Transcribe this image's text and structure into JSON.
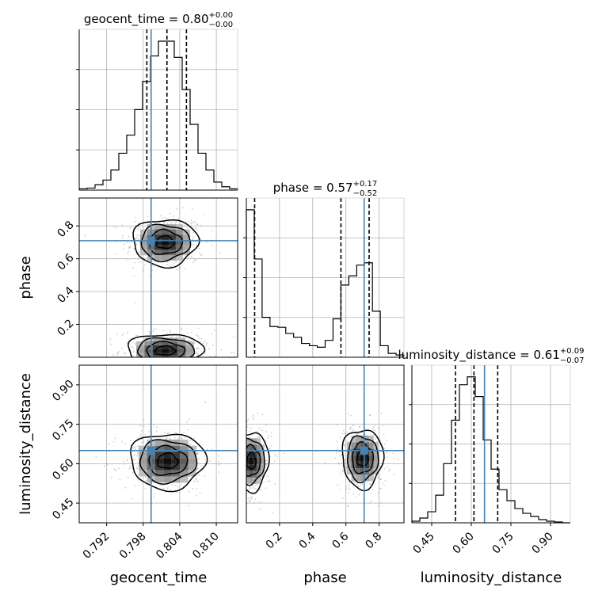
{
  "colors": {
    "truth": "#4682b4",
    "hist": "#000000",
    "grid": "#b0b0b0",
    "contour": "#000000",
    "scatter": "#9e9e9e"
  },
  "chart_data": {
    "type": "corner",
    "parameters": [
      "geocent_time",
      "phase",
      "luminosity_distance"
    ],
    "xlabels": [
      "geocent_time",
      "phase",
      "luminosity_distance"
    ],
    "ylabels": [
      "phase",
      "luminosity_distance"
    ],
    "truths": {
      "geocent_time": 0.7993,
      "phase": 0.71,
      "luminosity_distance": 0.65
    },
    "panels": [
      {
        "id": "hist-geocent_time",
        "type": "histogram",
        "param": "geocent_time",
        "title_name": "geocent_time",
        "title_value": "0.80",
        "title_plus": "+0.00",
        "title_minus": "−0.00",
        "xlim": [
          0.7875,
          0.8135
        ],
        "quantiles": [
          0.7986,
          0.8019,
          0.8051
        ],
        "bin_edges": [
          0.7875,
          0.7888,
          0.7901,
          0.7914,
          0.7927,
          0.794,
          0.7953,
          0.7966,
          0.7979,
          0.7992,
          0.8005,
          0.8018,
          0.8031,
          0.8044,
          0.8057,
          0.807,
          0.8083,
          0.8096,
          0.8109,
          0.8122,
          0.8135
        ],
        "counts": [
          2,
          3,
          8,
          15,
          30,
          55,
          82,
          120,
          162,
          200,
          222,
          222,
          198,
          150,
          98,
          55,
          30,
          12,
          5,
          2
        ]
      },
      {
        "id": "hist-phase",
        "type": "histogram",
        "param": "phase",
        "title_name": "phase",
        "title_value": "0.57",
        "title_plus": "+0.17",
        "title_minus": "−0.52",
        "xlim": [
          0.0,
          0.95
        ],
        "quantiles": [
          0.05,
          0.57,
          0.74
        ],
        "bin_edges": [
          0.0,
          0.0475,
          0.095,
          0.1425,
          0.19,
          0.2375,
          0.285,
          0.3325,
          0.38,
          0.4275,
          0.475,
          0.5225,
          0.57,
          0.6175,
          0.665,
          0.7125,
          0.76,
          0.8075,
          0.855,
          0.9025,
          0.95
        ],
        "counts": [
          192,
          128,
          52,
          40,
          39,
          31,
          26,
          18,
          15,
          13,
          22,
          50,
          94,
          106,
          120,
          123,
          60,
          15,
          5,
          3
        ]
      },
      {
        "id": "hist-luminosity_distance",
        "type": "histogram",
        "param": "luminosity_distance",
        "title_name": "luminosity_distance",
        "title_value": "0.61",
        "title_plus": "+0.09",
        "title_minus": "−0.07",
        "xlim": [
          0.375,
          0.975
        ],
        "quantiles": [
          0.54,
          0.61,
          0.7
        ],
        "bin_edges": [
          0.375,
          0.405,
          0.435,
          0.465,
          0.495,
          0.525,
          0.555,
          0.585,
          0.615,
          0.645,
          0.675,
          0.705,
          0.735,
          0.765,
          0.795,
          0.825,
          0.855,
          0.885,
          0.915,
          0.945,
          0.975
        ],
        "counts": [
          2,
          6,
          14,
          35,
          75,
          130,
          175,
          185,
          160,
          105,
          68,
          42,
          28,
          18,
          12,
          8,
          4,
          2,
          1,
          0
        ]
      },
      {
        "id": "pair-phase-vs-geocent_time",
        "type": "density_contour",
        "x_param": "geocent_time",
        "y_param": "phase",
        "xlim": [
          0.7875,
          0.8135
        ],
        "ylim": [
          0.0,
          0.97
        ],
        "modes": [
          {
            "x": 0.8016,
            "y": 0.7,
            "sx": 0.0026,
            "sy": 0.07
          },
          {
            "x": 0.8016,
            "y": 0.04,
            "sx": 0.003,
            "sy": 0.05
          }
        ]
      },
      {
        "id": "pair-luminosity_distance-vs-geocent_time",
        "type": "density_contour",
        "x_param": "geocent_time",
        "y_param": "luminosity_distance",
        "xlim": [
          0.7875,
          0.8135
        ],
        "ylim": [
          0.375,
          0.975
        ],
        "modes": [
          {
            "x": 0.802,
            "y": 0.61,
            "sx": 0.003,
            "sy": 0.052
          }
        ]
      },
      {
        "id": "pair-luminosity_distance-vs-phase",
        "type": "density_contour",
        "x_param": "phase",
        "y_param": "luminosity_distance",
        "xlim": [
          0.0,
          0.95
        ],
        "ylim": [
          0.375,
          0.975
        ],
        "modes": [
          {
            "x": 0.03,
            "y": 0.61,
            "sx": 0.05,
            "sy": 0.055
          },
          {
            "x": 0.7,
            "y": 0.62,
            "sx": 0.06,
            "sy": 0.055
          }
        ]
      }
    ],
    "ticks": {
      "geocent_time": {
        "values": [
          0.792,
          0.798,
          0.804,
          0.81
        ],
        "labels": [
          "0.792",
          "0.798",
          "0.804",
          "0.810"
        ]
      },
      "phase": {
        "values": [
          0.2,
          0.4,
          0.6,
          0.8
        ],
        "labels": [
          "0.2",
          "0.4",
          "0.6",
          "0.8"
        ]
      },
      "luminosity_distance": {
        "values": [
          0.45,
          0.6,
          0.75,
          0.9
        ],
        "labels": [
          "0.45",
          "0.60",
          "0.75",
          "0.90"
        ]
      }
    }
  }
}
